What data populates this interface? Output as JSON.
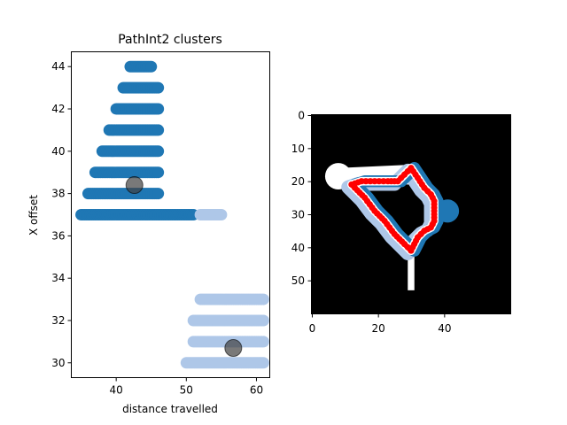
{
  "chart_data": [
    {
      "type": "scatter",
      "title": "PathInt2 clusters",
      "xlabel": "distance travelled",
      "ylabel": "X offset",
      "xlim": [
        33.6,
        61.9
      ],
      "ylim": [
        29.3,
        44.7
      ],
      "xticks": [
        40,
        50,
        60
      ],
      "yticks": [
        30,
        32,
        34,
        36,
        38,
        40,
        42,
        44
      ],
      "colors": {
        "cluster_a": "#1f77b4",
        "cluster_b": "#aec7e8",
        "centroid": "#404040"
      },
      "series": [
        {
          "color_key": "cluster_a",
          "segments": [
            {
              "y": 44,
              "x_start": 42,
              "x_end": 45
            },
            {
              "y": 43,
              "x_start": 41,
              "x_end": 46
            },
            {
              "y": 42,
              "x_start": 40,
              "x_end": 46
            },
            {
              "y": 41,
              "x_start": 39,
              "x_end": 46
            },
            {
              "y": 40,
              "x_start": 38,
              "x_end": 46
            },
            {
              "y": 39,
              "x_start": 37,
              "x_end": 46
            },
            {
              "y": 38,
              "x_start": 36,
              "x_end": 46
            },
            {
              "y": 37,
              "x_start": 35,
              "x_end": 51
            }
          ]
        },
        {
          "color_key": "cluster_b",
          "segments": [
            {
              "y": 37,
              "x_start": 52,
              "x_end": 55
            },
            {
              "y": 33,
              "x_start": 52,
              "x_end": 61
            },
            {
              "y": 32,
              "x_start": 51,
              "x_end": 61
            },
            {
              "y": 31,
              "x_start": 51,
              "x_end": 61
            },
            {
              "y": 30,
              "x_start": 50,
              "x_end": 61
            }
          ]
        }
      ],
      "centroids": [
        {
          "x": 42.6,
          "y": 38.4
        },
        {
          "x": 56.7,
          "y": 30.7
        }
      ]
    },
    {
      "type": "heatmap",
      "title": "",
      "xlim": [
        0,
        60
      ],
      "ylim": [
        60,
        0
      ],
      "xticks": [
        0,
        20,
        40
      ],
      "yticks": [
        0,
        10,
        20,
        30,
        40,
        50
      ],
      "colors": {
        "background": "#000000",
        "track": "#ffffff",
        "cluster_a": "#1f77b4",
        "cluster_b": "#aec7e8",
        "path": "#ff0000"
      },
      "shapes": {
        "bulb_center": [
          8,
          18.5
        ],
        "bulb_radius": 4,
        "stem_x": [
          29,
          31
        ],
        "stem_y_end": 53,
        "blue_bulge_center": [
          41,
          29
        ],
        "blue_bulge_radius": 3.5
      },
      "path_points": [
        [
          12,
          21
        ],
        [
          15,
          20
        ],
        [
          19,
          20
        ],
        [
          23,
          20
        ],
        [
          26,
          20
        ],
        [
          28,
          18
        ],
        [
          30,
          16
        ],
        [
          32,
          19
        ],
        [
          34,
          22
        ],
        [
          36,
          24
        ],
        [
          37,
          26
        ],
        [
          37,
          29
        ],
        [
          37,
          32
        ],
        [
          36,
          34
        ],
        [
          34,
          35
        ],
        [
          32,
          37
        ],
        [
          31,
          39
        ],
        [
          30,
          41
        ],
        [
          28,
          39
        ],
        [
          25,
          36
        ],
        [
          22,
          32
        ],
        [
          19,
          29
        ],
        [
          16,
          25
        ],
        [
          13,
          22
        ],
        [
          12,
          21
        ]
      ]
    }
  ]
}
